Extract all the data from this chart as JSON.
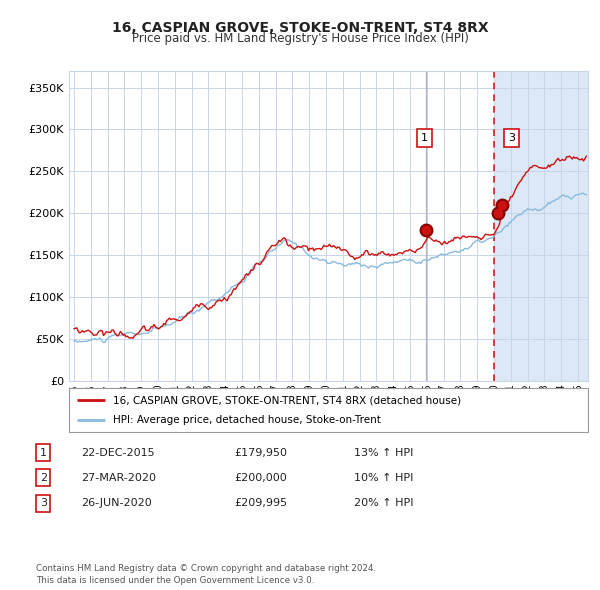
{
  "title": "16, CASPIAN GROVE, STOKE-ON-TRENT, ST4 8RX",
  "subtitle": "Price paid vs. HM Land Registry's House Price Index (HPI)",
  "background_color": "#ffffff",
  "plot_bg_color": "#ffffff",
  "grid_color": "#c8d4e8",
  "ylim": [
    0,
    370000
  ],
  "yticks": [
    0,
    50000,
    100000,
    150000,
    200000,
    250000,
    300000,
    350000
  ],
  "ytick_labels": [
    "£0",
    "£50K",
    "£100K",
    "£150K",
    "£200K",
    "£250K",
    "£300K",
    "£350K"
  ],
  "shade_start_year": 2020.0,
  "shade_end_year": 2025.6,
  "shade_color": "#dce8f5",
  "dashed_line_x": 2020.0,
  "dashed_line_color": "#cc2222",
  "transaction1": {
    "year": 2015.97,
    "price": 179950,
    "label": "1"
  },
  "transaction2": {
    "year": 2020.23,
    "price": 200000,
    "label": "2"
  },
  "transaction3": {
    "year": 2020.48,
    "price": 209995,
    "label": "3"
  },
  "vertical_line1_x": 2015.97,
  "vertical_line1_color": "#b0b0c8",
  "legend_line1_color": "#cc1111",
  "legend_line2_color": "#88bbdd",
  "legend1_label": "16, CASPIAN GROVE, STOKE-ON-TRENT, ST4 8RX (detached house)",
  "legend2_label": "HPI: Average price, detached house, Stoke-on-Trent",
  "footnote": "Contains HM Land Registry data © Crown copyright and database right 2024.\nThis data is licensed under the Open Government Licence v3.0.",
  "table_rows": [
    {
      "num": "1",
      "date": "22-DEC-2015",
      "price": "£179,950",
      "hpi": "13% ↑ HPI"
    },
    {
      "num": "2",
      "date": "27-MAR-2020",
      "price": "£200,000",
      "hpi": "10% ↑ HPI"
    },
    {
      "num": "3",
      "date": "26-JUN-2020",
      "price": "£209,995",
      "hpi": "20% ↑ HPI"
    }
  ],
  "xmin": 1994.7,
  "xmax": 2025.6
}
